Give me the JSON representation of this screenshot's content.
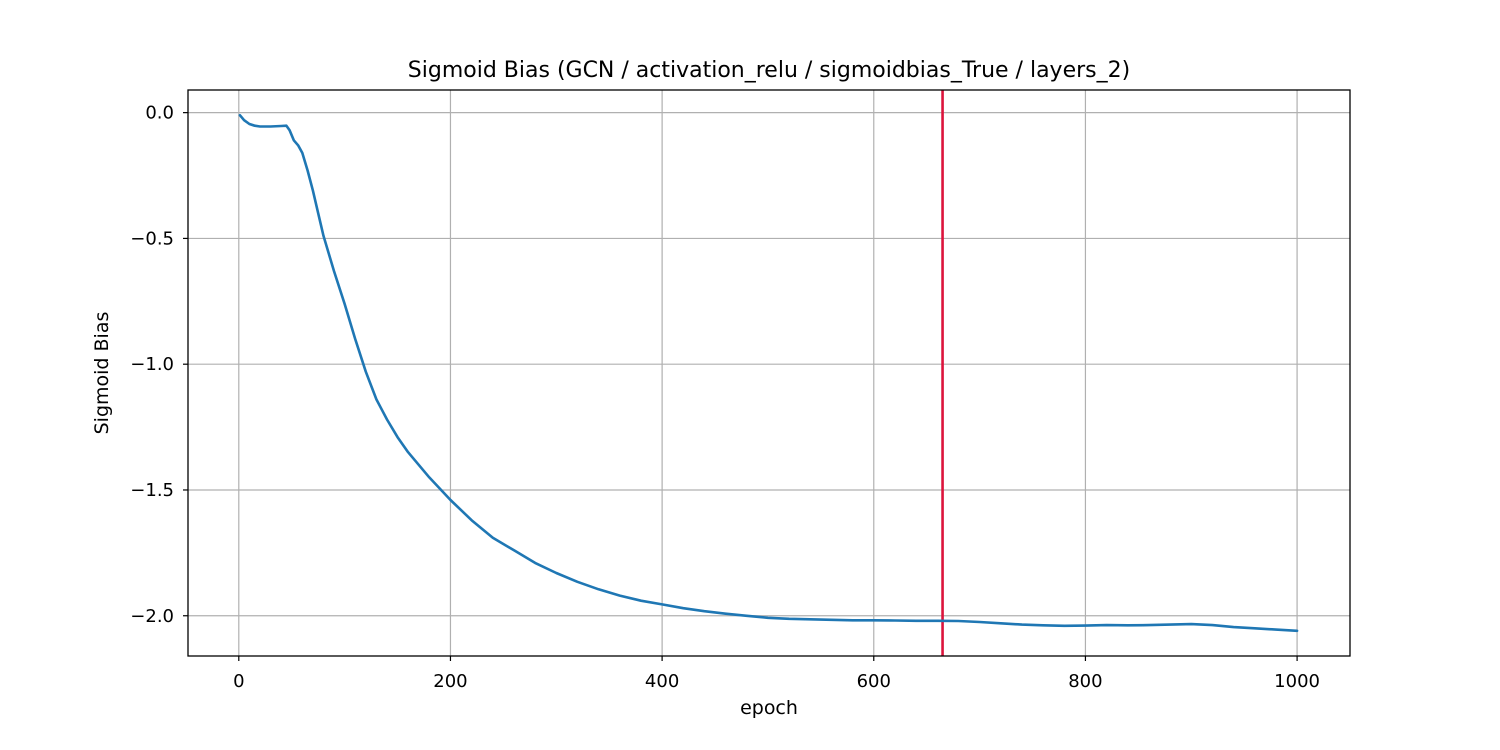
{
  "chart_data": {
    "type": "line",
    "title": "Sigmoid Bias (GCN / activation_relu / sigmoidbias_True / layers_2)",
    "xlabel": "epoch",
    "ylabel": "Sigmoid Bias",
    "xlim": [
      -48,
      1050
    ],
    "ylim": [
      -2.16,
      0.09
    ],
    "xticks": [
      0,
      200,
      400,
      600,
      800,
      1000
    ],
    "xtick_labels": [
      "0",
      "200",
      "400",
      "600",
      "800",
      "1000"
    ],
    "yticks": [
      0.0,
      -0.5,
      -1.0,
      -1.5,
      -2.0
    ],
    "ytick_labels": [
      "0.0",
      "−0.5",
      "−1.0",
      "−1.5",
      "−2.0"
    ],
    "grid": true,
    "series": [
      {
        "color": "#1f77b4",
        "x": [
          1,
          5,
          10,
          15,
          20,
          30,
          40,
          45,
          48,
          52,
          56,
          60,
          65,
          70,
          75,
          80,
          90,
          100,
          110,
          120,
          130,
          140,
          150,
          160,
          170,
          180,
          200,
          220,
          240,
          260,
          280,
          300,
          320,
          340,
          360,
          380,
          400,
          420,
          440,
          460,
          480,
          500,
          520,
          540,
          560,
          580,
          600,
          620,
          640,
          660,
          680,
          700,
          720,
          740,
          760,
          780,
          800,
          820,
          840,
          860,
          880,
          900,
          920,
          940,
          960,
          980,
          1000
        ],
        "y": [
          -0.01,
          -0.03,
          -0.045,
          -0.052,
          -0.055,
          -0.055,
          -0.053,
          -0.052,
          -0.07,
          -0.11,
          -0.13,
          -0.16,
          -0.23,
          -0.31,
          -0.4,
          -0.49,
          -0.63,
          -0.76,
          -0.9,
          -1.03,
          -1.14,
          -1.22,
          -1.29,
          -1.35,
          -1.4,
          -1.45,
          -1.54,
          -1.62,
          -1.69,
          -1.74,
          -1.79,
          -1.83,
          -1.865,
          -1.895,
          -1.92,
          -1.94,
          -1.955,
          -1.97,
          -1.982,
          -1.992,
          -2.0,
          -2.008,
          -2.012,
          -2.014,
          -2.016,
          -2.018,
          -2.018,
          -2.019,
          -2.02,
          -2.02,
          -2.021,
          -2.025,
          -2.03,
          -2.035,
          -2.038,
          -2.04,
          -2.039,
          -2.037,
          -2.038,
          -2.037,
          -2.035,
          -2.033,
          -2.037,
          -2.045,
          -2.05,
          -2.055,
          -2.06
        ]
      }
    ],
    "vlines": [
      {
        "x": 665,
        "color": "#dc143c"
      }
    ]
  }
}
